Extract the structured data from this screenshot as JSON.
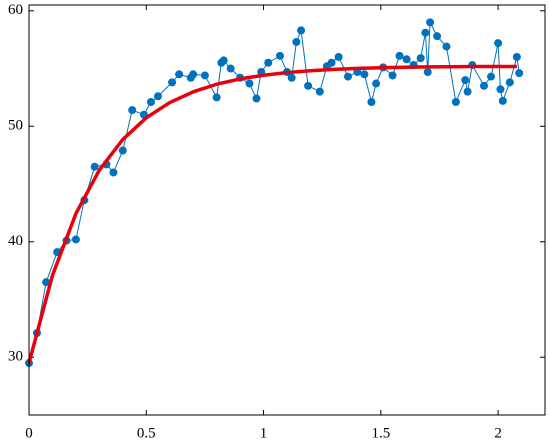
{
  "chart_data": {
    "type": "line",
    "xlim": [
      0,
      2.2
    ],
    "ylim": [
      25,
      60.5
    ],
    "xticks": [
      0,
      0.5,
      1,
      1.5,
      2
    ],
    "yticks": [
      30,
      40,
      50,
      60
    ],
    "series": [
      {
        "color": "#0072bd",
        "marker": true,
        "x": [
          0,
          0.034,
          0.073,
          0.12,
          0.16,
          0.2,
          0.236,
          0.28,
          0.33,
          0.36,
          0.4,
          0.44,
          0.49,
          0.52,
          0.55,
          0.61,
          0.64,
          0.69,
          0.7,
          0.75,
          0.8,
          0.82,
          0.83,
          0.86,
          0.9,
          0.94,
          0.97,
          0.99,
          1.02,
          1.07,
          1.1,
          1.12,
          1.14,
          1.16,
          1.19,
          1.24,
          1.27,
          1.29,
          1.32,
          1.36,
          1.4,
          1.43,
          1.46,
          1.48,
          1.51,
          1.55,
          1.58,
          1.61,
          1.64,
          1.67,
          1.69,
          1.7,
          1.71,
          1.74,
          1.78,
          1.82,
          1.86,
          1.87,
          1.89,
          1.94,
          1.97,
          2.0,
          2.01,
          2.02,
          2.05,
          2.08,
          2.09
        ],
        "values": [
          29.5,
          32.1,
          36.5,
          39.1,
          40.1,
          40.2,
          43.6,
          46.5,
          46.7,
          46,
          47.9,
          51.4,
          51,
          52.1,
          52.6,
          53.8,
          54.5,
          54.2,
          54.5,
          54.4,
          52.5,
          55.5,
          55.7,
          55,
          54.2,
          53.7,
          52.4,
          54.7,
          55.5,
          56.1,
          54.7,
          54.2,
          57.3,
          58.3,
          53.5,
          53,
          55.2,
          55.5,
          56,
          54.3,
          54.7,
          54.5,
          52.1,
          53.7,
          55.1,
          54.4,
          56.1,
          55.8,
          55.3,
          55.9,
          58.1,
          54.7,
          59,
          57.8,
          56.9,
          52.1,
          54,
          53,
          55.3,
          53.5,
          54.3,
          57.2,
          53.2,
          52.2,
          53.8,
          56,
          54.6
        ]
      },
      {
        "color": "#e8000b",
        "marker": false,
        "x": [
          0,
          0.1,
          0.2,
          0.3,
          0.4,
          0.5,
          0.6,
          0.7,
          0.8,
          0.9,
          1.0,
          1.1,
          1.2,
          1.3,
          1.4,
          1.5,
          1.6,
          1.7,
          1.8,
          1.9,
          2.0,
          2.08
        ],
        "values": [
          29.5,
          37.09,
          42.44,
          46.21,
          48.86,
          50.73,
          52.05,
          52.98,
          53.64,
          54.1,
          54.42,
          54.65,
          54.81,
          54.93,
          55.01,
          55.07,
          55.11,
          55.14,
          55.15,
          55.17,
          55.18,
          55.18
        ]
      }
    ]
  }
}
